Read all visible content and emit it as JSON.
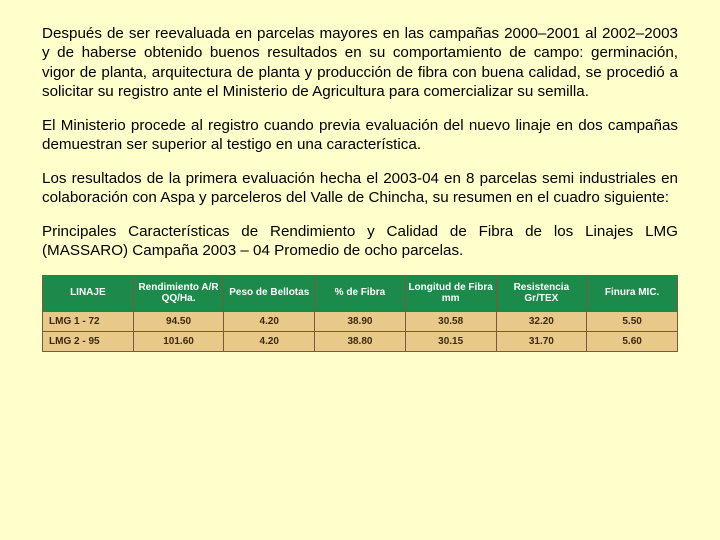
{
  "paragraphs": [
    "Después de ser reevaluada en parcelas mayores en las campañas 2000–2001 al 2002–2003 y de haberse obtenido buenos resultados en su comportamiento de campo: germinación, vigor de planta, arquitectura de planta y producción de fibra con buena calidad, se procedió a solicitar su registro ante el Ministerio de Agricultura para comercializar su semilla.",
    "El Ministerio procede al registro cuando previa evaluación del nuevo linaje en dos campañas demuestran ser superior al testigo en una característica.",
    "Los resultados de la primera evaluación hecha el 2003-04 en 8 parcelas semi industriales en colaboración con Aspa y parceleros del Valle de Chincha, su resumen en el cuadro siguiente:",
    "Principales Características de Rendimiento y Calidad de Fibra de los Linajes LMG (MASSARO) Campaña 2003 – 04 Promedio de ocho parcelas."
  ],
  "table": {
    "columns": [
      "LINAJE",
      "Rendimiento A/R QQ/Ha.",
      "Peso de Bellotas",
      "% de Fibra",
      "Longitud de Fibra mm",
      "Resistencia Gr/TEX",
      "Finura MIC."
    ],
    "rows": [
      [
        "LMG 1 - 72",
        "94.50",
        "4.20",
        "38.90",
        "30.58",
        "32.20",
        "5.50"
      ],
      [
        "LMG 2 - 95",
        "101.60",
        "4.20",
        "38.80",
        "30.15",
        "31.70",
        "5.60"
      ]
    ],
    "header_bg": "#1b8a4a",
    "header_fg": "#ffffff",
    "cell_bg": "#e9c98a",
    "cell_fg": "#3a2a10",
    "border_color": "#7a5a3a",
    "header_fontsize": 10,
    "cell_fontsize": 10
  },
  "background_color": "#ffffcc",
  "text_color": "#000000",
  "body_fontsize": 15.2
}
